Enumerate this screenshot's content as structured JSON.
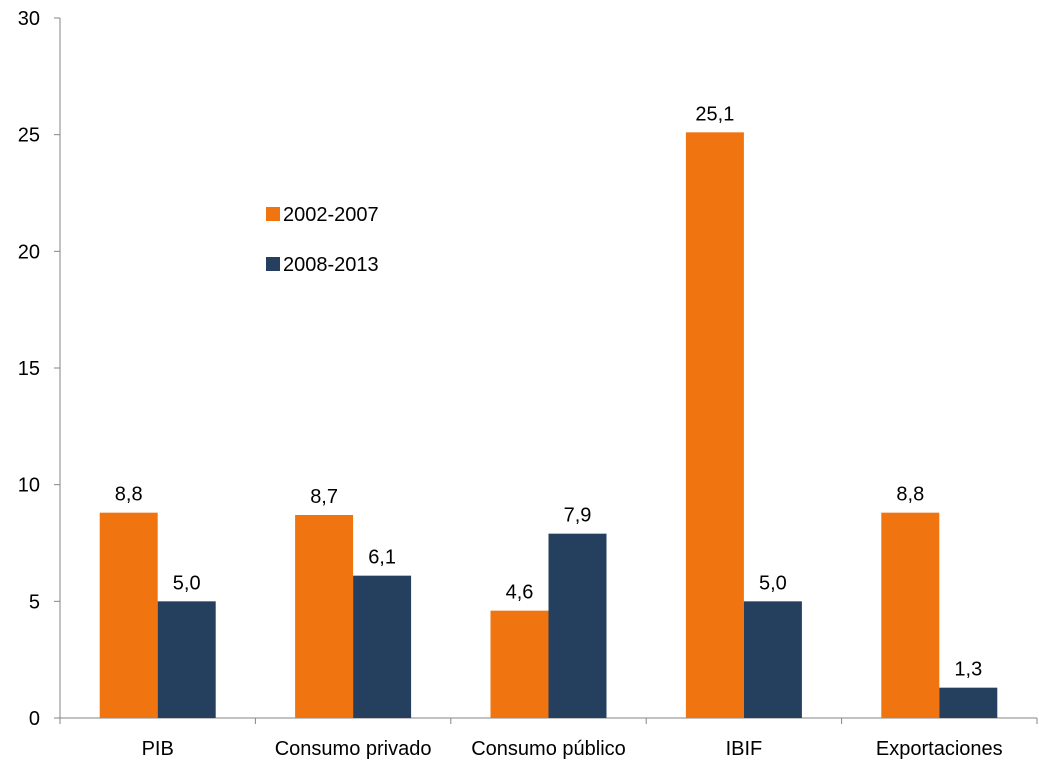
{
  "chart_data": {
    "type": "bar",
    "title": "",
    "xlabel": "",
    "ylabel": "",
    "categories": [
      "PIB",
      "Consumo privado",
      "Consumo público",
      "IBIF",
      "Exportaciones"
    ],
    "series": [
      {
        "name": "2002-2007",
        "color": "#F07410",
        "values": [
          8.8,
          8.7,
          4.6,
          25.1,
          8.8
        ],
        "labels": [
          "8,8",
          "8,7",
          "4,6",
          "25,1",
          "8,8"
        ]
      },
      {
        "name": "2008-2013",
        "color": "#253F5E",
        "values": [
          5.0,
          6.1,
          7.9,
          5.0,
          1.3
        ],
        "labels": [
          "5,0",
          "6,1",
          "7,9",
          "5,0",
          "1,3"
        ]
      }
    ],
    "ylim": [
      0,
      30
    ],
    "yticks": [
      0,
      5,
      10,
      15,
      20,
      25,
      30
    ],
    "grid": false,
    "legend_position": "upper-left inside plot"
  }
}
